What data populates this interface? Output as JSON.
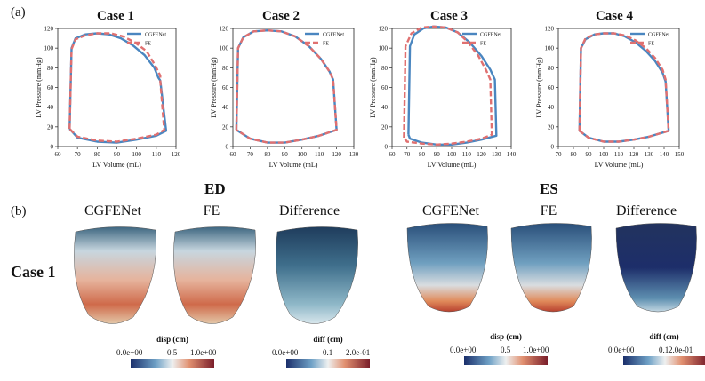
{
  "panel_a_label": "(a)",
  "panel_b_label": "(b)",
  "phase_ed": "ED",
  "phase_es": "ES",
  "row_label": "Case 1",
  "heart_titles": [
    "CGFENet",
    "FE",
    "Difference",
    "CGFENet",
    "FE",
    "Difference"
  ],
  "colorbars": {
    "disp": {
      "title": "disp (cm)",
      "min_label": "0.0e+00",
      "mid_label": "0.5",
      "max_label": "1.0e+00"
    },
    "diff": {
      "title": "diff (cm)",
      "min_label": "0.0e+00",
      "mid_label": "0.1",
      "max_label": "2.0e-01"
    }
  },
  "colors": {
    "cgfenet": "#4a86c0",
    "fe": "#e07070",
    "cold": "#1b2f6b",
    "warm": "#c9453a"
  },
  "chart_data": [
    {
      "type": "line",
      "title": "Case 1",
      "xlabel": "LV Volume (mL)",
      "ylabel": "LV Pressure (mmHg)",
      "xlim": [
        60,
        120
      ],
      "ylim": [
        0,
        120
      ],
      "xticks": [
        60,
        70,
        80,
        90,
        100,
        110,
        120
      ],
      "yticks": [
        0,
        20,
        40,
        60,
        80,
        100,
        120
      ],
      "legend": [
        "CGFENet",
        "FE"
      ],
      "legend_position": "top-right",
      "series": [
        {
          "name": "CGFENet",
          "x": [
            66,
            67,
            69,
            74,
            80,
            86,
            92,
            98,
            104,
            109,
            111,
            112,
            115,
            110,
            100,
            90,
            80,
            70,
            66
          ],
          "y": [
            18,
            100,
            110,
            114,
            115,
            114,
            110,
            103,
            93,
            80,
            70,
            67,
            16,
            11,
            7,
            4,
            5,
            9,
            18
          ]
        },
        {
          "name": "FE",
          "x": [
            66,
            67,
            69,
            74,
            80,
            87,
            93,
            99,
            105,
            109,
            112,
            112,
            114,
            110,
            100,
            90,
            80,
            70,
            66
          ],
          "y": [
            18,
            99,
            109,
            113,
            115,
            115,
            112,
            106,
            97,
            84,
            72,
            67,
            17,
            12,
            8,
            5,
            6,
            10,
            18
          ]
        }
      ]
    },
    {
      "type": "line",
      "title": "Case 2",
      "xlabel": "LV Volume (mL)",
      "ylabel": "LV Pressure (mmHg)",
      "xlim": [
        60,
        130
      ],
      "ylim": [
        0,
        120
      ],
      "xticks": [
        60,
        70,
        80,
        90,
        100,
        110,
        120,
        130
      ],
      "yticks": [
        0,
        20,
        40,
        60,
        80,
        100,
        120
      ],
      "legend": [
        "CGFENet",
        "FE"
      ],
      "legend_position": "top-right",
      "series": [
        {
          "name": "CGFENet",
          "x": [
            62,
            63,
            66,
            72,
            80,
            88,
            96,
            104,
            111,
            116,
            118,
            120,
            110,
            100,
            90,
            80,
            70,
            62
          ],
          "y": [
            17,
            100,
            111,
            117,
            118,
            117,
            112,
            102,
            89,
            76,
            68,
            17,
            11,
            7,
            4,
            4,
            8,
            17
          ]
        },
        {
          "name": "FE",
          "x": [
            62,
            63,
            66,
            72,
            80,
            88,
            96,
            104,
            111,
            116,
            118,
            120,
            110,
            100,
            90,
            80,
            70,
            62
          ],
          "y": [
            17,
            100,
            111,
            117,
            118,
            117,
            112,
            102,
            89,
            76,
            68,
            17,
            11,
            7,
            4,
            4,
            8,
            17
          ]
        }
      ]
    },
    {
      "type": "line",
      "title": "Case 3",
      "xlabel": "LV Volume (mL)",
      "ylabel": "LV Pressure (mmHg)",
      "xlim": [
        60,
        140
      ],
      "ylim": [
        0,
        120
      ],
      "xticks": [
        60,
        70,
        80,
        90,
        100,
        110,
        120,
        130,
        140
      ],
      "yticks": [
        0,
        20,
        40,
        60,
        80,
        100,
        120
      ],
      "legend": [
        "CGFENet",
        "FE"
      ],
      "legend_position": "top-right",
      "series": [
        {
          "name": "CGFENet",
          "x": [
            71,
            72,
            75,
            81,
            88,
            96,
            104,
            112,
            120,
            126,
            129,
            130,
            120,
            110,
            100,
            90,
            80,
            72,
            71
          ],
          "y": [
            12,
            102,
            114,
            120,
            122,
            121,
            116,
            106,
            92,
            78,
            68,
            11,
            7,
            4,
            2,
            2,
            4,
            8,
            12
          ]
        },
        {
          "name": "FE",
          "x": [
            68,
            69,
            73,
            80,
            88,
            96,
            104,
            111,
            118,
            123,
            126,
            127,
            120,
            110,
            100,
            90,
            80,
            70,
            68
          ],
          "y": [
            9,
            102,
            115,
            121,
            122,
            121,
            116,
            106,
            92,
            78,
            68,
            12,
            8,
            5,
            3,
            2,
            3,
            5,
            9
          ]
        }
      ]
    },
    {
      "type": "line",
      "title": "Case 4",
      "xlabel": "LV Volume (mL)",
      "ylabel": "LV Pressure (mmHg)",
      "xlim": [
        70,
        150
      ],
      "ylim": [
        0,
        120
      ],
      "xticks": [
        70,
        80,
        90,
        100,
        110,
        120,
        130,
        140,
        150
      ],
      "yticks": [
        0,
        20,
        40,
        60,
        80,
        100,
        120
      ],
      "legend": [
        "CGFENet",
        "FE"
      ],
      "legend_position": "top-right",
      "series": [
        {
          "name": "CGFENet",
          "x": [
            84,
            85,
            88,
            94,
            100,
            107,
            114,
            121,
            128,
            134,
            139,
            141,
            143,
            130,
            120,
            110,
            100,
            90,
            84
          ],
          "y": [
            16,
            100,
            109,
            114,
            115,
            115,
            112,
            106,
            97,
            87,
            75,
            66,
            16,
            10,
            7,
            5,
            5,
            9,
            16
          ]
        },
        {
          "name": "FE",
          "x": [
            84,
            85,
            88,
            94,
            100,
            107,
            114,
            121,
            128,
            134,
            139,
            141,
            143,
            130,
            120,
            110,
            100,
            90,
            84
          ],
          "y": [
            16,
            100,
            110,
            114,
            115,
            115,
            113,
            108,
            100,
            90,
            78,
            68,
            16,
            10,
            7,
            5,
            5,
            9,
            16
          ]
        }
      ]
    }
  ]
}
